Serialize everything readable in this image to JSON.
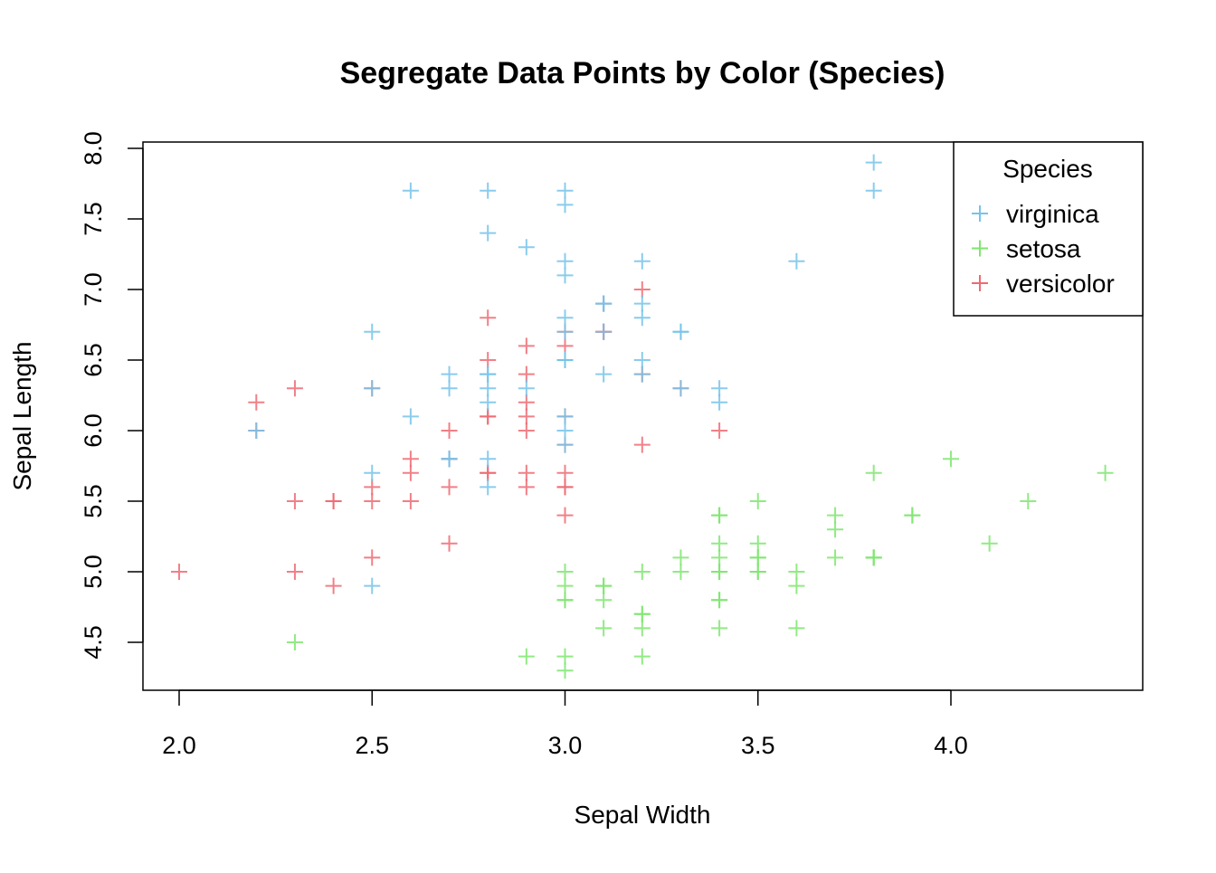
{
  "chart_data": {
    "type": "scatter",
    "title": "Segregate Data Points by Color (Species)",
    "xlabel": "Sepal Width",
    "ylabel": "Sepal Length",
    "xlim": [
      1.9,
      4.5
    ],
    "ylim": [
      4.2,
      8.05
    ],
    "x_ticks": [
      "2.0",
      "2.5",
      "3.0",
      "3.5",
      "4.0"
    ],
    "y_ticks": [
      "4.5",
      "5.0",
      "5.5",
      "6.0",
      "6.5",
      "7.0",
      "7.5",
      "8.0"
    ],
    "grid": false,
    "marker": "plus",
    "legend": {
      "title": "Species",
      "placement": "top-right",
      "entries": [
        "virginica",
        "setosa",
        "versicolor"
      ]
    },
    "series": [
      {
        "name": "setosa",
        "color": "#7ee66f",
        "points": [
          [
            3.5,
            5.1
          ],
          [
            3.0,
            4.9
          ],
          [
            3.2,
            4.7
          ],
          [
            3.1,
            4.6
          ],
          [
            3.6,
            5.0
          ],
          [
            3.9,
            5.4
          ],
          [
            3.4,
            4.6
          ],
          [
            3.4,
            5.0
          ],
          [
            2.9,
            4.4
          ],
          [
            3.1,
            4.9
          ],
          [
            3.7,
            5.4
          ],
          [
            3.4,
            4.8
          ],
          [
            3.0,
            4.8
          ],
          [
            3.0,
            4.3
          ],
          [
            4.0,
            5.8
          ],
          [
            4.4,
            5.7
          ],
          [
            3.9,
            5.4
          ],
          [
            3.5,
            5.1
          ],
          [
            3.8,
            5.7
          ],
          [
            3.8,
            5.1
          ],
          [
            3.4,
            5.4
          ],
          [
            3.7,
            5.1
          ],
          [
            3.6,
            4.6
          ],
          [
            3.3,
            5.1
          ],
          [
            3.4,
            4.8
          ],
          [
            3.0,
            5.0
          ],
          [
            3.4,
            5.0
          ],
          [
            3.5,
            5.2
          ],
          [
            3.4,
            5.2
          ],
          [
            3.2,
            4.7
          ],
          [
            3.1,
            4.8
          ],
          [
            3.4,
            5.4
          ],
          [
            4.1,
            5.2
          ],
          [
            4.2,
            5.5
          ],
          [
            3.1,
            4.9
          ],
          [
            3.2,
            5.0
          ],
          [
            3.5,
            5.5
          ],
          [
            3.6,
            4.9
          ],
          [
            3.0,
            4.4
          ],
          [
            3.4,
            5.1
          ],
          [
            3.5,
            5.0
          ],
          [
            2.3,
            4.5
          ],
          [
            3.2,
            4.4
          ],
          [
            3.5,
            5.0
          ],
          [
            3.8,
            5.1
          ],
          [
            3.0,
            4.8
          ],
          [
            3.8,
            5.1
          ],
          [
            3.2,
            4.6
          ],
          [
            3.7,
            5.3
          ],
          [
            3.3,
            5.0
          ]
        ]
      },
      {
        "name": "versicolor",
        "color": "#ee6a72",
        "points": [
          [
            3.2,
            7.0
          ],
          [
            3.2,
            6.4
          ],
          [
            3.1,
            6.9
          ],
          [
            2.3,
            5.5
          ],
          [
            2.8,
            6.5
          ],
          [
            2.8,
            5.7
          ],
          [
            3.3,
            6.3
          ],
          [
            2.4,
            4.9
          ],
          [
            2.9,
            6.6
          ],
          [
            2.7,
            5.2
          ],
          [
            2.0,
            5.0
          ],
          [
            3.0,
            5.9
          ],
          [
            2.2,
            6.0
          ],
          [
            2.9,
            6.1
          ],
          [
            2.9,
            5.6
          ],
          [
            3.1,
            6.7
          ],
          [
            3.0,
            5.6
          ],
          [
            2.7,
            5.8
          ],
          [
            2.2,
            6.2
          ],
          [
            2.5,
            5.6
          ],
          [
            3.2,
            5.9
          ],
          [
            2.8,
            6.1
          ],
          [
            2.5,
            6.3
          ],
          [
            2.8,
            6.1
          ],
          [
            2.9,
            6.4
          ],
          [
            3.0,
            6.6
          ],
          [
            2.8,
            6.8
          ],
          [
            3.0,
            6.7
          ],
          [
            2.9,
            6.0
          ],
          [
            2.6,
            5.7
          ],
          [
            2.4,
            5.5
          ],
          [
            2.4,
            5.5
          ],
          [
            2.7,
            5.8
          ],
          [
            2.7,
            6.0
          ],
          [
            3.0,
            5.4
          ],
          [
            3.4,
            6.0
          ],
          [
            3.1,
            6.7
          ],
          [
            2.3,
            6.3
          ],
          [
            3.0,
            5.6
          ],
          [
            2.5,
            5.5
          ],
          [
            2.6,
            5.5
          ],
          [
            3.0,
            6.1
          ],
          [
            2.6,
            5.8
          ],
          [
            2.3,
            5.0
          ],
          [
            2.7,
            5.6
          ],
          [
            3.0,
            5.7
          ],
          [
            2.9,
            5.7
          ],
          [
            2.9,
            6.2
          ],
          [
            2.5,
            5.1
          ],
          [
            2.8,
            5.7
          ]
        ]
      },
      {
        "name": "virginica",
        "color": "#76c3ea",
        "points": [
          [
            3.3,
            6.3
          ],
          [
            2.7,
            5.8
          ],
          [
            3.0,
            7.1
          ],
          [
            2.9,
            6.3
          ],
          [
            3.0,
            6.5
          ],
          [
            3.0,
            7.6
          ],
          [
            2.5,
            4.9
          ],
          [
            2.9,
            7.3
          ],
          [
            2.5,
            6.7
          ],
          [
            3.6,
            7.2
          ],
          [
            3.2,
            6.5
          ],
          [
            2.7,
            6.4
          ],
          [
            3.0,
            6.8
          ],
          [
            2.5,
            5.7
          ],
          [
            2.8,
            5.8
          ],
          [
            3.2,
            6.4
          ],
          [
            3.0,
            6.5
          ],
          [
            3.8,
            7.7
          ],
          [
            2.6,
            7.7
          ],
          [
            2.2,
            6.0
          ],
          [
            3.2,
            6.9
          ],
          [
            2.8,
            5.6
          ],
          [
            2.8,
            7.7
          ],
          [
            2.7,
            6.3
          ],
          [
            3.3,
            6.7
          ],
          [
            3.2,
            7.2
          ],
          [
            2.8,
            6.2
          ],
          [
            3.0,
            6.1
          ],
          [
            2.8,
            6.4
          ],
          [
            3.0,
            7.2
          ],
          [
            2.8,
            7.4
          ],
          [
            3.8,
            7.9
          ],
          [
            2.8,
            6.4
          ],
          [
            2.8,
            6.3
          ],
          [
            2.6,
            6.1
          ],
          [
            3.0,
            7.7
          ],
          [
            3.4,
            6.3
          ],
          [
            3.1,
            6.4
          ],
          [
            3.0,
            6.0
          ],
          [
            3.1,
            6.9
          ],
          [
            3.1,
            6.7
          ],
          [
            3.1,
            6.9
          ],
          [
            2.7,
            5.8
          ],
          [
            3.2,
            6.8
          ],
          [
            3.3,
            6.7
          ],
          [
            3.0,
            6.7
          ],
          [
            2.5,
            6.3
          ],
          [
            3.0,
            6.5
          ],
          [
            3.4,
            6.2
          ],
          [
            3.0,
            5.9
          ]
        ]
      }
    ]
  }
}
